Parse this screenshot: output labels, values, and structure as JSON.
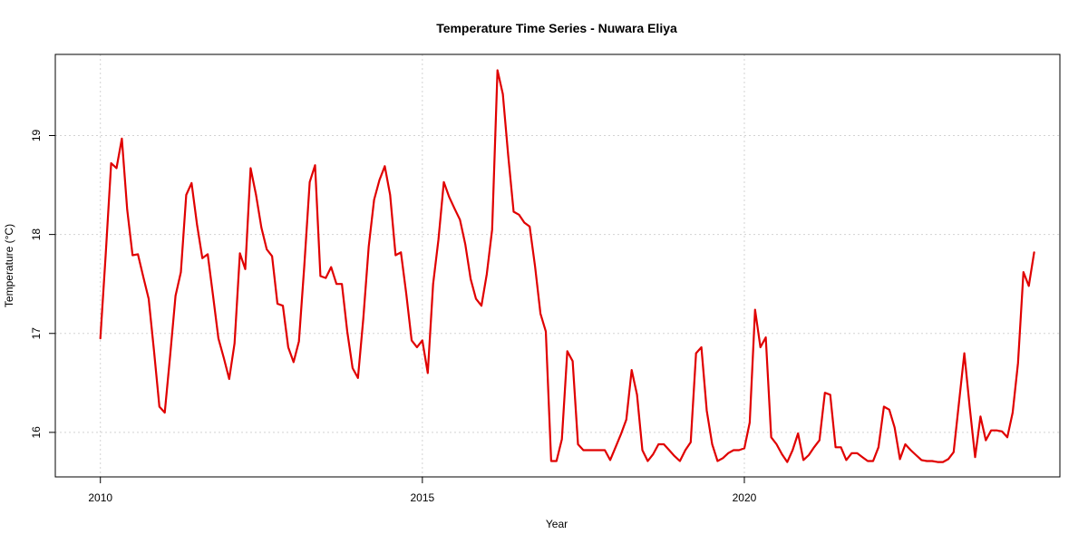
{
  "chart_data": {
    "type": "line",
    "title": "Temperature Time Series - Nuwara Eliya",
    "xlabel": "Year",
    "ylabel": "Temperature (°C)",
    "xlim": [
      2009.3,
      2024.9
    ],
    "ylim": [
      15.55,
      19.82
    ],
    "x_ticks": [
      2010,
      2015,
      2020
    ],
    "y_ticks": [
      16,
      17,
      18,
      19
    ],
    "grid": true,
    "series_color": "#e00000",
    "x_start": 2010.0,
    "x_step": 0.0833333,
    "values": [
      16.95,
      17.8,
      18.72,
      18.67,
      18.97,
      18.25,
      17.79,
      17.8,
      17.57,
      17.35,
      16.82,
      16.26,
      16.2,
      16.78,
      17.38,
      17.62,
      18.4,
      18.52,
      18.1,
      17.76,
      17.8,
      17.38,
      16.95,
      16.75,
      16.54,
      16.9,
      17.81,
      17.65,
      18.67,
      18.4,
      18.07,
      17.85,
      17.78,
      17.3,
      17.28,
      16.86,
      16.71,
      16.92,
      17.68,
      18.53,
      18.7,
      17.58,
      17.56,
      17.67,
      17.5,
      17.5,
      17.02,
      16.65,
      16.55,
      17.15,
      17.88,
      18.35,
      18.55,
      18.69,
      18.4,
      17.79,
      17.82,
      17.4,
      16.93,
      16.86,
      16.93,
      16.6,
      17.5,
      17.95,
      18.53,
      18.38,
      18.26,
      18.15,
      17.9,
      17.55,
      17.35,
      17.28,
      17.6,
      18.05,
      19.66,
      19.42,
      18.8,
      18.23,
      18.2,
      18.12,
      18.08,
      17.68,
      17.2,
      17.02,
      15.71,
      15.71,
      15.93,
      16.82,
      16.72,
      15.88,
      15.82,
      15.82,
      15.82,
      15.82,
      15.82,
      15.72,
      15.85,
      15.98,
      16.13,
      16.63,
      16.38,
      15.82,
      15.71,
      15.78,
      15.88,
      15.88,
      15.82,
      15.76,
      15.71,
      15.82,
      15.9,
      16.8,
      16.86,
      16.22,
      15.88,
      15.71,
      15.74,
      15.79,
      15.82,
      15.82,
      15.84,
      16.1,
      17.24,
      16.86,
      16.96,
      15.95,
      15.88,
      15.78,
      15.7,
      15.82,
      15.99,
      15.72,
      15.77,
      15.85,
      15.92,
      16.4,
      16.38,
      15.85,
      15.85,
      15.72,
      15.79,
      15.79,
      15.75,
      15.71,
      15.71,
      15.85,
      16.26,
      16.23,
      16.05,
      15.73,
      15.88,
      15.82,
      15.77,
      15.72,
      15.71,
      15.71,
      15.7,
      15.7,
      15.73,
      15.8,
      16.3,
      16.8,
      16.25,
      15.75,
      16.16,
      15.92,
      16.02,
      16.02,
      16.01,
      15.95,
      16.2,
      16.7,
      17.62,
      17.48,
      17.82
    ]
  }
}
